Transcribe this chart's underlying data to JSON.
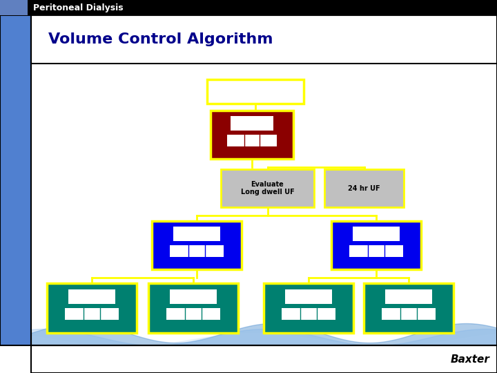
{
  "title": "Volume Control Algorithm",
  "header_text": "Peritoneal Dialysis",
  "baxter_text": "Baxter",
  "bg_color": "#ffffff",
  "header_bg": "#000000",
  "header_blue": "#6080c0",
  "title_color": "#00008B",
  "left_stripe_color": "#5080d0",
  "border_color": "#000000",
  "yellow": "#FFFF00",
  "dark_red": "#8B0000",
  "blue_box": "#0000EE",
  "teal": "#008070",
  "gray": "#C0C0C0",
  "white": "#FFFFFF",
  "eval_text": "Evaluate\nLong dwell UF",
  "uf_text": "24 hr UF",
  "wave_color1": "#5090d0",
  "wave_color2": "#7ab0e8"
}
